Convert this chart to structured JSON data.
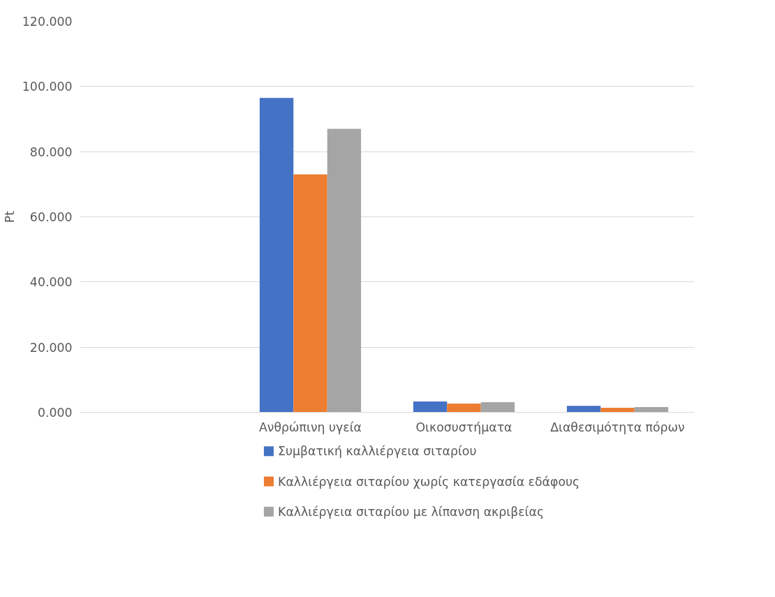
{
  "chart_data": {
    "type": "bar",
    "ylabel": "Pt",
    "categories": [
      null,
      "Ανθρώπινη υγεία",
      "Οικοσυστήματα",
      "Διαθεσιμότητα πόρων"
    ],
    "series": [
      {
        "name": "Συμβατική καλλιέργεια σιταρίου",
        "color": "#4472c4",
        "values": [
          null,
          96.5,
          3.3,
          2.0
        ]
      },
      {
        "name": "Καλλιέργεια σιταρίου χωρίς κατεργασία εδάφους",
        "color": "#ed7d31",
        "values": [
          null,
          73.0,
          2.7,
          1.4
        ]
      },
      {
        "name": "Καλλιέργεια σιταρίου με λίπανση ακριβείας",
        "color": "#a5a5a5",
        "values": [
          null,
          87.0,
          3.1,
          1.6
        ]
      }
    ],
    "ylim": [
      0,
      120
    ],
    "yticks": [
      {
        "value": 0,
        "label": "0.000"
      },
      {
        "value": 20,
        "label": "20.000"
      },
      {
        "value": 40,
        "label": "40.000"
      },
      {
        "value": 60,
        "label": "60.000"
      },
      {
        "value": 80,
        "label": "80.000"
      },
      {
        "value": 100,
        "label": "100.000"
      },
      {
        "value": 120,
        "label": "120.000"
      }
    ],
    "grid": "y",
    "legend": "bottom"
  }
}
